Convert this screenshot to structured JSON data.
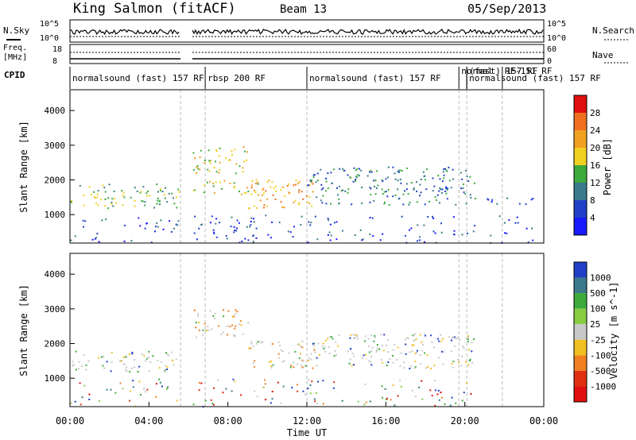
{
  "header": {
    "station": "King Salmon (fitACF)",
    "beam": "Beam 13",
    "date": "05/Sep/2013"
  },
  "noise_panel": {
    "left_label": "N.Sky",
    "right_label": "N.Search",
    "left_top_tick": "10^5",
    "left_bottom_tick": "10^0",
    "right_top_tick": "10^5",
    "right_bottom_tick": "10^0"
  },
  "freq_panel": {
    "left_label_1": "Freq.",
    "left_label_2": "[MHz]",
    "right_label": "Nave",
    "left_top_tick": "18",
    "left_bottom_tick": "8",
    "right_top_tick": "60",
    "right_bottom_tick": "0"
  },
  "cpid": {
    "label": "CPID",
    "segments": [
      {
        "text": "normalsound (fast) 157 RF",
        "start_hr": 0.0,
        "end_hr": 5.6
      },
      {
        "text": "rbsp 200 RF",
        "start_hr": 6.85,
        "end_hr": 12.0
      },
      {
        "text": "normalsound (fast) 157 RF",
        "start_hr": 12.0,
        "end_hr": 19.7
      },
      {
        "text": "normal",
        "start_hr": 19.7,
        "end_hr": 20.1
      },
      {
        "text": "(fast) 157 RF",
        "start_hr": 20.1,
        "end_hr": 21.0
      },
      {
        "text": "normalsound (fast) 157 RF",
        "start_hr": 20.1,
        "end_hr": 24.0
      },
      {
        "text": "RF-151 RF",
        "start_hr": 21.9,
        "end_hr": 24.0
      }
    ]
  },
  "time_axis": {
    "label": "Time UT",
    "ticks": [
      "00:00",
      "04:00",
      "08:00",
      "12:00",
      "16:00",
      "20:00",
      "00:00"
    ]
  },
  "range_axis": {
    "label": "Slant Range [km]",
    "ticks": [
      "1000",
      "2000",
      "3000",
      "4000"
    ]
  },
  "power_colorbar": {
    "label": "Power [dB]",
    "ticks": [
      "4",
      "8",
      "12",
      "16",
      "20",
      "24",
      "28"
    ],
    "colors": [
      "#1a1aff",
      "#2040c8",
      "#3a7a8a",
      "#3caa3c",
      "#f0d020",
      "#f0a020",
      "#f07020",
      "#e01010"
    ]
  },
  "velocity_colorbar": {
    "label": "Velocity [m s^-1]",
    "ticks": [
      "1000",
      "500",
      "100",
      "25",
      "-25",
      "-100",
      "-500",
      "-1000"
    ],
    "colors": [
      "#2040c8",
      "#3a7a8a",
      "#3caa3c",
      "#88cc44",
      "#c8c8c8",
      "#f0c020",
      "#f08020",
      "#e03010",
      "#e01010"
    ]
  },
  "chart_data": {
    "type": "heatmap",
    "title": "King Salmon (fitACF) Beam 13 05/Sep/2013",
    "xlabel": "Time UT",
    "ylabel": "Slant Range [km]",
    "xlim_hours": [
      0,
      24
    ],
    "ylim_km": [
      180,
      4600
    ],
    "data_gap_hours": [
      5.6,
      6.2
    ],
    "scatter_regions": [
      {
        "panel": "power",
        "t_start": 0.0,
        "t_end": 5.5,
        "range_min": 1200,
        "range_max": 1900,
        "dominant_power_db": 12
      },
      {
        "panel": "power",
        "t_start": 6.2,
        "t_end": 9.0,
        "range_min": 2200,
        "range_max": 3000,
        "dominant_power_db": 18
      },
      {
        "panel": "power",
        "t_start": 6.2,
        "t_end": 9.5,
        "range_min": 1600,
        "range_max": 2000,
        "dominant_power_db": 16
      },
      {
        "panel": "power",
        "t_start": 9.0,
        "t_end": 12.5,
        "range_min": 1200,
        "range_max": 2100,
        "dominant_power_db": 20
      },
      {
        "panel": "power",
        "t_start": 12.0,
        "t_end": 20.5,
        "range_min": 1300,
        "range_max": 2400,
        "dominant_power_db": 10
      },
      {
        "panel": "power",
        "t_start": 21.0,
        "t_end": 23.5,
        "range_min": 1300,
        "range_max": 1500,
        "dominant_power_db": 6
      },
      {
        "panel": "velocity",
        "t_start": 0.0,
        "t_end": 5.5,
        "range_min": 1200,
        "range_max": 1800,
        "dominant_velocity": 0
      },
      {
        "panel": "velocity",
        "t_start": 6.2,
        "t_end": 9.0,
        "range_min": 2200,
        "range_max": 3000,
        "dominant_velocity": -300
      },
      {
        "panel": "velocity",
        "t_start": 9.0,
        "t_end": 12.5,
        "range_min": 1300,
        "range_max": 2100,
        "dominant_velocity": -200
      },
      {
        "panel": "velocity",
        "t_start": 12.0,
        "t_end": 20.5,
        "range_min": 1300,
        "range_max": 2300,
        "dominant_velocity": 0
      }
    ]
  }
}
